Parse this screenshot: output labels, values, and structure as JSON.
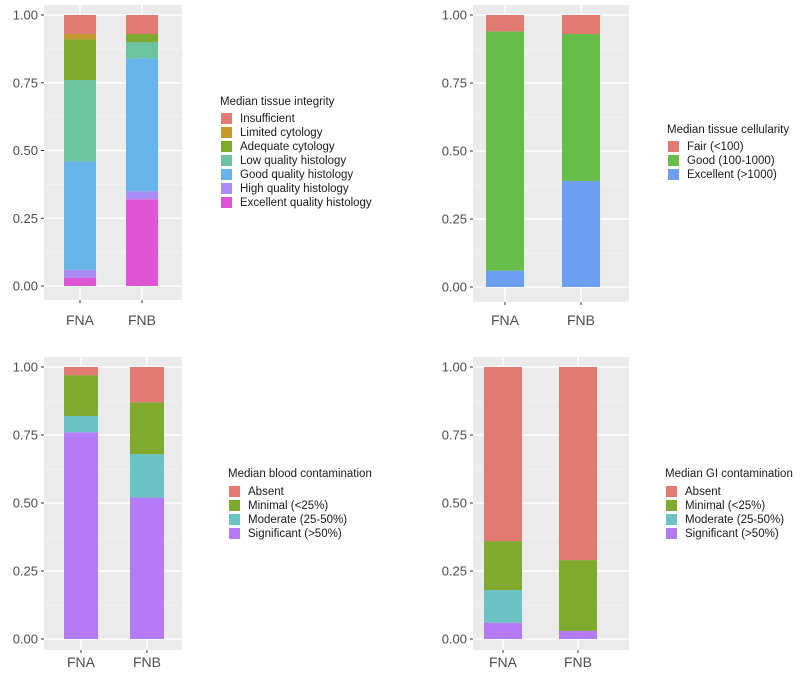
{
  "chart_data": [
    {
      "type": "bar",
      "stacked": true,
      "categories": [
        "FNA",
        "FNB"
      ],
      "ylim": [
        0,
        1
      ],
      "yticks": [
        "0.00",
        "0.25",
        "0.50",
        "0.75",
        "1.00"
      ],
      "legend_title": "Median tissue integrity",
      "series": [
        {
          "name": "Insufficient",
          "color": "#E07A72",
          "values": [
            0.07,
            0.07
          ]
        },
        {
          "name": "Limited cytology",
          "color": "#C49A2C",
          "values": [
            0.02,
            0.0
          ]
        },
        {
          "name": "Adequate cytology",
          "color": "#7FAA2E",
          "values": [
            0.15,
            0.03
          ]
        },
        {
          "name": "Low quality histology",
          "color": "#6BC3A0",
          "values": [
            0.3,
            0.06
          ]
        },
        {
          "name": "Good quality histology",
          "color": "#67B5E8",
          "values": [
            0.4,
            0.49
          ]
        },
        {
          "name": "High quality histology",
          "color": "#A98CF5",
          "values": [
            0.03,
            0.03
          ]
        },
        {
          "name": "Excellent quality histology",
          "color": "#E055D6",
          "values": [
            0.03,
            0.32
          ]
        }
      ]
    },
    {
      "type": "bar",
      "stacked": true,
      "categories": [
        "FNA",
        "FNB"
      ],
      "ylim": [
        0,
        1
      ],
      "yticks": [
        "0.00",
        "0.25",
        "0.50",
        "0.75",
        "1.00"
      ],
      "legend_title": "Median tissue cellularity",
      "series": [
        {
          "name": "Fair (<100)",
          "color": "#E07A72",
          "values": [
            0.06,
            0.07
          ]
        },
        {
          "name": "Good (100-1000)",
          "color": "#66BD4A",
          "values": [
            0.88,
            0.54
          ]
        },
        {
          "name": "Excellent (>1000)",
          "color": "#6E9EF2",
          "values": [
            0.06,
            0.39
          ]
        }
      ]
    },
    {
      "type": "bar",
      "stacked": true,
      "categories": [
        "FNA",
        "FNB"
      ],
      "ylim": [
        0,
        1
      ],
      "yticks": [
        "0.00",
        "0.25",
        "0.50",
        "0.75",
        "1.00"
      ],
      "legend_title": "Median blood contamination",
      "series": [
        {
          "name": "Absent",
          "color": "#E07A72",
          "values": [
            0.03,
            0.13
          ]
        },
        {
          "name": "Minimal (<25%)",
          "color": "#7FAA2E",
          "values": [
            0.15,
            0.19
          ]
        },
        {
          "name": "Moderate (25-50%)",
          "color": "#6BC3C3",
          "values": [
            0.06,
            0.16
          ]
        },
        {
          "name": "Significant (>50%)",
          "color": "#B57BF5",
          "values": [
            0.76,
            0.52
          ]
        }
      ]
    },
    {
      "type": "bar",
      "stacked": true,
      "categories": [
        "FNA",
        "FNB"
      ],
      "ylim": [
        0,
        1
      ],
      "yticks": [
        "0.00",
        "0.25",
        "0.50",
        "0.75",
        "1.00"
      ],
      "legend_title": "Median GI contamination",
      "series": [
        {
          "name": "Absent",
          "color": "#E07A72",
          "values": [
            0.64,
            0.71
          ]
        },
        {
          "name": "Minimal (<25%)",
          "color": "#7FAA2E",
          "values": [
            0.18,
            0.26
          ]
        },
        {
          "name": "Moderate (25-50%)",
          "color": "#6BC3C3",
          "values": [
            0.12,
            0.0
          ]
        },
        {
          "name": "Significant (>50%)",
          "color": "#B57BF5",
          "values": [
            0.06,
            0.03
          ]
        }
      ]
    }
  ]
}
